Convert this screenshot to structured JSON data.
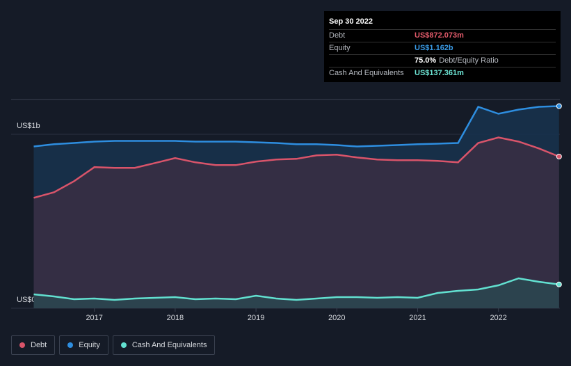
{
  "chart_data": {
    "type": "area",
    "x": [
      2016.25,
      2016.5,
      2016.75,
      2017,
      2017.25,
      2017.5,
      2017.75,
      2018,
      2018.25,
      2018.5,
      2018.75,
      2019,
      2019.25,
      2019.5,
      2019.75,
      2020,
      2020.25,
      2020.5,
      2020.75,
      2021,
      2021.25,
      2021.5,
      2021.75,
      2022,
      2022.25,
      2022.5,
      2022.75
    ],
    "xlim": [
      2015.97,
      2022.76
    ],
    "xticks": [
      2017,
      2018,
      2019,
      2020,
      2021,
      2022
    ],
    "ylim": [
      0,
      1.2
    ],
    "yticks": [
      {
        "value": 0,
        "label": "US$0"
      },
      {
        "value": 1,
        "label": "US$1b"
      }
    ],
    "grid": true,
    "series": [
      {
        "name": "Equity",
        "color": "#2e8ee0",
        "fill": "#17324d",
        "values": [
          0.93,
          0.943,
          0.95,
          0.958,
          0.962,
          0.962,
          0.962,
          0.962,
          0.958,
          0.958,
          0.958,
          0.954,
          0.95,
          0.943,
          0.943,
          0.938,
          0.93,
          0.934,
          0.938,
          0.943,
          0.946,
          0.95,
          1.158,
          1.118,
          1.142,
          1.158,
          1.162
        ]
      },
      {
        "name": "Debt",
        "color": "#d9546a",
        "fill": "#372f44",
        "values": [
          0.635,
          0.667,
          0.731,
          0.811,
          0.807,
          0.807,
          0.835,
          0.863,
          0.839,
          0.823,
          0.823,
          0.843,
          0.855,
          0.859,
          0.879,
          0.883,
          0.867,
          0.855,
          0.851,
          0.851,
          0.847,
          0.839,
          0.95,
          0.982,
          0.958,
          0.919,
          0.872
        ]
      },
      {
        "name": "Cash And Equivalents",
        "color": "#62e0d0",
        "fill": "#2b4650",
        "values": [
          0.08,
          0.068,
          0.052,
          0.056,
          0.048,
          0.056,
          0.06,
          0.064,
          0.052,
          0.056,
          0.052,
          0.072,
          0.056,
          0.048,
          0.056,
          0.064,
          0.064,
          0.06,
          0.064,
          0.06,
          0.088,
          0.1,
          0.108,
          0.132,
          0.172,
          0.152,
          0.137
        ]
      }
    ]
  },
  "tooltip": {
    "date": "Sep 30 2022",
    "rows": [
      {
        "label": "Debt",
        "value": "US$872.073m",
        "color": "#e05a6a"
      },
      {
        "label": "Equity",
        "value": "US$1.162b",
        "color": "#3a9ce8"
      },
      {
        "label": "",
        "value": "75.0%",
        "note": "Debt/Equity Ratio",
        "color": "#ffffff"
      },
      {
        "label": "Cash And Equivalents",
        "value": "US$137.361m",
        "color": "#6ee6d6"
      }
    ]
  }
}
